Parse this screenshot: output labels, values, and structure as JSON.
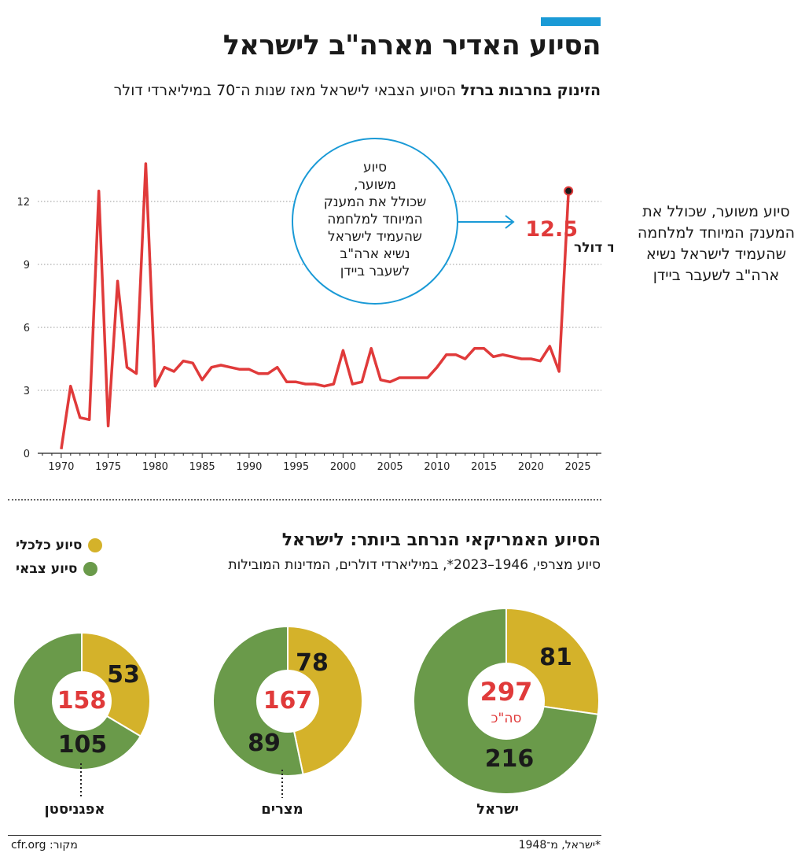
{
  "title": "הסיוע האדיר מארה\"ב לישראל",
  "subtitle_bold": "הזינוק בחרבות ברזל",
  "subtitle_rest": " הסיוע הצבאי לישראל מאז שנות ה־70 במיליארדי דולר",
  "bubble_lines": [
    "סיוע",
    "משוער,",
    "שכולל את המענק",
    "המיוחד למלחמה",
    "שהעמיד לישראל",
    "נשיא ארה\"ב",
    "לשעבר ביידן"
  ],
  "last_value_label": "12.5",
  "last_value_unit": "מיליארד דולר",
  "side_note": "סיוע משוער, שכולל את המענק המיוחד למלחמה שהעמיד לישראל נשיא ארה\"ב לשעבר ביידן",
  "section2_title": "הסיוע האמריקאי הנרחב ביותר: לישראל",
  "section2_subtitle": "סיוע מצרפי, 1946–2023*, במיליארדי דולרים, המדינות המובילות",
  "legend": [
    {
      "label": "סיוע כלכלי",
      "color": "#d4b22a"
    },
    {
      "label": "סיוע צבאי",
      "color": "#6a9a4a"
    }
  ],
  "colors": {
    "line": "#e03a3a",
    "accent": "#1a9ad6",
    "economic": "#d4b22a",
    "military": "#6a9a4a",
    "total": "#e03a3a"
  },
  "source": "מקור: cfr.org",
  "footnote": "*ישראל, מ־1948",
  "chart_data": [
    {
      "type": "line",
      "ylim": [
        0,
        13.5
      ],
      "y_ticks": [
        0,
        3,
        6,
        9,
        12
      ],
      "x_ticks": [
        1970,
        1975,
        1980,
        1985,
        1990,
        1995,
        2000,
        2005,
        2010,
        2015,
        2020,
        2025
      ],
      "grid": true,
      "series": [
        {
          "x": [
            1970,
            1971,
            1972,
            1973,
            1974,
            1975,
            1976,
            1977,
            1978,
            1979,
            1980,
            1981,
            1982,
            1983,
            1984,
            1985,
            1986,
            1987,
            1988,
            1989,
            1990,
            1991,
            1992,
            1993,
            1994,
            1995,
            1996,
            1997,
            1998,
            1999,
            2000,
            2001,
            2002,
            2003,
            2004,
            2005,
            2006,
            2007,
            2008,
            2009,
            2010,
            2011,
            2012,
            2013,
            2014,
            2015,
            2016,
            2017,
            2018,
            2019,
            2020,
            2021,
            2022,
            2023,
            2024
          ],
          "y": [
            0.2,
            3.2,
            1.7,
            1.6,
            12.5,
            1.3,
            8.2,
            4.1,
            3.8,
            13.8,
            3.2,
            4.1,
            3.9,
            4.4,
            4.3,
            3.5,
            4.1,
            4.2,
            4.1,
            4.0,
            4.0,
            3.8,
            3.8,
            4.1,
            3.4,
            3.4,
            3.3,
            3.3,
            3.2,
            3.3,
            4.9,
            3.3,
            3.4,
            5.0,
            3.5,
            3.4,
            3.6,
            3.6,
            3.6,
            3.6,
            4.1,
            4.7,
            4.7,
            4.5,
            5.0,
            5.0,
            4.6,
            4.7,
            4.6,
            4.5,
            4.5,
            4.4,
            5.1,
            3.9,
            12.5
          ]
        }
      ]
    },
    {
      "type": "pie",
      "name": "ישראל",
      "total": 297,
      "total_label": "סה\"כ",
      "segments": [
        {
          "label": "סיוע כלכלי",
          "value": 81
        },
        {
          "label": "סיוע צבאי",
          "value": 216
        }
      ]
    },
    {
      "type": "pie",
      "name": "מצרים",
      "total": 167,
      "segments": [
        {
          "label": "סיוע כלכלי",
          "value": 78
        },
        {
          "label": "סיוע צבאי",
          "value": 89
        }
      ]
    },
    {
      "type": "pie",
      "name": "אפגניסטן",
      "total": 158,
      "segments": [
        {
          "label": "סיוע כלכלי",
          "value": 53
        },
        {
          "label": "סיוע צבאי",
          "value": 105
        }
      ]
    }
  ]
}
